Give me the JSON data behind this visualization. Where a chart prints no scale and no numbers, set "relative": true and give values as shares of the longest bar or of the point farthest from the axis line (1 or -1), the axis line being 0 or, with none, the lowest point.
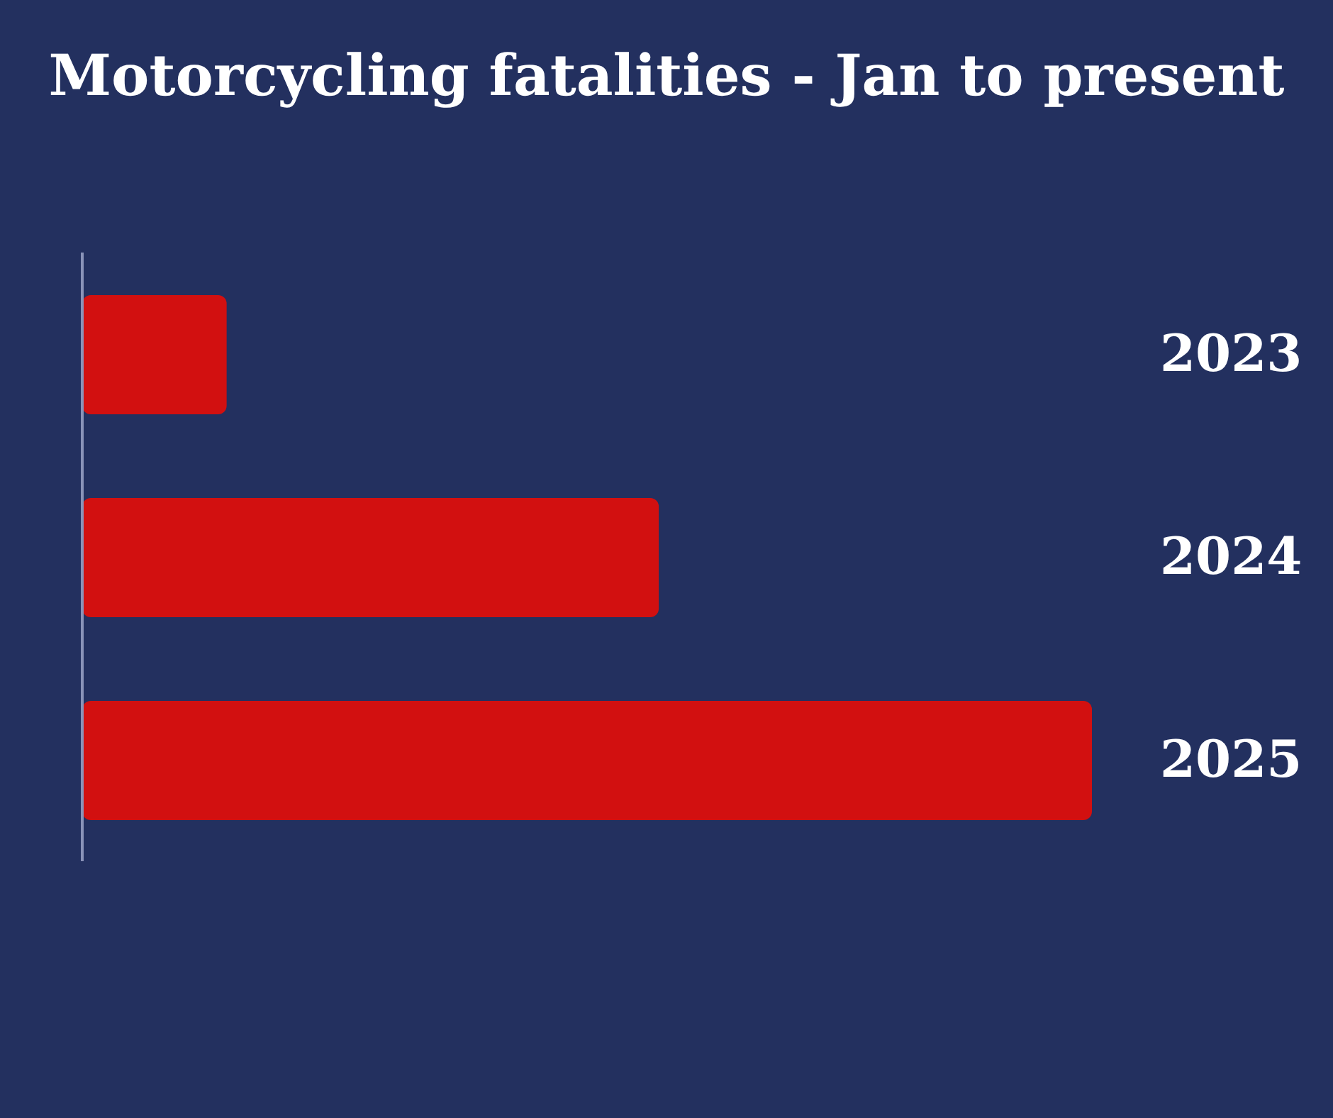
{
  "chart_data": {
    "type": "bar",
    "orientation": "horizontal",
    "relative": true,
    "title": "Motorcycling fatalities - Jan to present",
    "categories": [
      "2023",
      "2024",
      "2025"
    ],
    "values": [
      0.143,
      0.571,
      1
    ],
    "color": "#d21010"
  }
}
